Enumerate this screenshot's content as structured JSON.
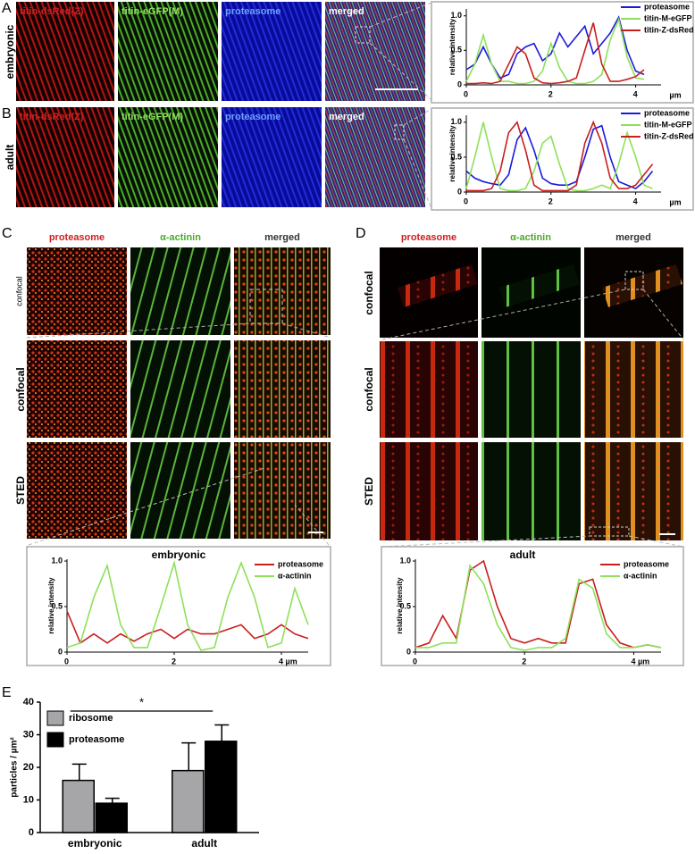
{
  "panels": {
    "A": {
      "letter": "A",
      "row_label": "embryonic",
      "columns": [
        "titin-dsRed(Z)",
        "titin-eGFP(M)",
        "proteasome",
        "merged"
      ]
    },
    "B": {
      "letter": "B",
      "row_label": "adult",
      "columns": [
        "titin-dsRed(Z)",
        "titin-eGFP(M)",
        "proteasome",
        "merged"
      ]
    },
    "C": {
      "letter": "C",
      "columns": [
        "proteasome",
        "α-actinin",
        "merged"
      ],
      "rows": [
        "confocal",
        "confocal",
        "STED"
      ]
    },
    "D": {
      "letter": "D",
      "columns": [
        "proteasome",
        "α-actinin",
        "merged"
      ],
      "rows": [
        "confocal",
        "confocal",
        "STED"
      ]
    },
    "E": {
      "letter": "E"
    }
  },
  "chart_data": [
    {
      "type": "line",
      "ylabel": "relative intensity",
      "xlabel": "µm",
      "legend": "upper right",
      "x": [
        0,
        0.2,
        0.4,
        0.6,
        0.8,
        1,
        1.2,
        1.4,
        1.6,
        1.8,
        2,
        2.2,
        2.4,
        2.6,
        2.8,
        3,
        3.2,
        3.4,
        3.6,
        3.8,
        4,
        4.2
      ],
      "series": [
        {
          "name": "proteasome",
          "color": "#1a1adc",
          "values": [
            0.22,
            0.3,
            0.55,
            0.3,
            0.1,
            0.15,
            0.45,
            0.55,
            0.6,
            0.35,
            0.45,
            0.75,
            0.55,
            0.7,
            0.85,
            0.45,
            0.6,
            0.75,
            0.98,
            0.5,
            0.2,
            0.15
          ]
        },
        {
          "name": "titin-M-eGFP",
          "color": "#8ee05a",
          "values": [
            0.05,
            0.3,
            0.72,
            0.3,
            0.05,
            0.05,
            0.02,
            0.02,
            0.05,
            0.2,
            0.6,
            0.25,
            0.05,
            0.02,
            0.02,
            0.05,
            0.15,
            0.65,
            0.95,
            0.4,
            0.1,
            0.08
          ]
        },
        {
          "name": "titin-Z-dsRed",
          "color": "#c81e1e",
          "values": [
            0.02,
            0.02,
            0.03,
            0.02,
            0.05,
            0.3,
            0.55,
            0.45,
            0.1,
            0.03,
            0.02,
            0.03,
            0.05,
            0.1,
            0.5,
            0.9,
            0.3,
            0.05,
            0.05,
            0.08,
            0.12,
            0.22
          ]
        }
      ],
      "xlim": [
        0,
        4.6
      ],
      "xticks": [
        0,
        2,
        4
      ],
      "ylim": [
        0,
        1.1
      ],
      "yticks": [
        0,
        0.5,
        {
          "value": 1,
          "label": "1.0"
        }
      ]
    },
    {
      "type": "line",
      "ylabel": "relative intensity",
      "xlabel": "µm",
      "legend": "upper right",
      "x": [
        0,
        0.2,
        0.4,
        0.6,
        0.8,
        1,
        1.2,
        1.4,
        1.6,
        1.8,
        2,
        2.2,
        2.4,
        2.6,
        2.8,
        3,
        3.2,
        3.4,
        3.6,
        3.8,
        4,
        4.2,
        4.4
      ],
      "series": [
        {
          "name": "proteasome",
          "color": "#1a1adc",
          "values": [
            0.3,
            0.2,
            0.15,
            0.12,
            0.1,
            0.25,
            0.75,
            0.92,
            0.6,
            0.2,
            0.12,
            0.1,
            0.1,
            0.15,
            0.5,
            0.9,
            0.95,
            0.5,
            0.15,
            0.1,
            0.05,
            0.15,
            0.3
          ]
        },
        {
          "name": "titin-M-eGFP",
          "color": "#8ee05a",
          "values": [
            0.05,
            0.5,
            1.0,
            0.5,
            0.05,
            0.02,
            0.02,
            0.05,
            0.3,
            0.7,
            0.8,
            0.4,
            0.05,
            0.02,
            0.02,
            0.05,
            0.1,
            0.05,
            0.4,
            0.85,
            0.5,
            0.1,
            0.05
          ]
        },
        {
          "name": "titin-Z-dsRed",
          "color": "#c81e1e",
          "values": [
            0.02,
            0.02,
            0.02,
            0.05,
            0.3,
            0.85,
            1.0,
            0.6,
            0.1,
            0.02,
            0.02,
            0.02,
            0.02,
            0.1,
            0.7,
            1.0,
            0.7,
            0.2,
            0.05,
            0.05,
            0.1,
            0.25,
            0.4
          ]
        }
      ],
      "xlim": [
        0,
        4.6
      ],
      "xticks": [
        0,
        2,
        4
      ],
      "ylim": [
        0,
        1.1
      ],
      "yticks": [
        0,
        0.5,
        {
          "value": 1,
          "label": "1.0"
        }
      ]
    },
    {
      "type": "line",
      "title": "embryonic",
      "ylabel": "relative intensity",
      "legend": "upper right",
      "x": [
        0,
        0.25,
        0.5,
        0.75,
        1,
        1.25,
        1.5,
        1.75,
        2,
        2.25,
        2.5,
        2.75,
        3,
        3.25,
        3.5,
        3.75,
        4,
        4.25,
        4.5
      ],
      "series": [
        {
          "name": "proteasome",
          "color": "#c81e1e",
          "values": [
            0.45,
            0.1,
            0.2,
            0.1,
            0.2,
            0.12,
            0.2,
            0.25,
            0.15,
            0.25,
            0.2,
            0.2,
            0.25,
            0.3,
            0.15,
            0.2,
            0.3,
            0.2,
            0.15
          ]
        },
        {
          "name": "α-actinin",
          "color": "#8ee05a",
          "values": [
            0.05,
            0.1,
            0.6,
            0.95,
            0.3,
            0.05,
            0.05,
            0.5,
            0.98,
            0.3,
            0.02,
            0.05,
            0.6,
            0.98,
            0.6,
            0.05,
            0.1,
            0.7,
            0.3
          ]
        }
      ],
      "xlim": [
        0,
        4.5
      ],
      "xticks": [
        0,
        2,
        {
          "value": 4,
          "label": "4 µm"
        }
      ],
      "ylim": [
        0,
        1.02
      ],
      "yticks": [
        0,
        0.5,
        {
          "value": 1,
          "label": "1.0"
        }
      ]
    },
    {
      "type": "line",
      "title": "adult",
      "ylabel": "relative intensity",
      "legend": "upper right",
      "x": [
        0,
        0.25,
        0.5,
        0.75,
        1,
        1.25,
        1.5,
        1.75,
        2,
        2.25,
        2.5,
        2.75,
        3,
        3.25,
        3.5,
        3.75,
        4,
        4.25,
        4.5
      ],
      "series": [
        {
          "name": "proteasome",
          "color": "#c81e1e",
          "values": [
            0.05,
            0.1,
            0.4,
            0.15,
            0.9,
            1.0,
            0.5,
            0.15,
            0.1,
            0.15,
            0.1,
            0.1,
            0.75,
            0.8,
            0.3,
            0.1,
            0.05,
            0.08,
            0.05
          ]
        },
        {
          "name": "α-actinin",
          "color": "#8ee05a",
          "values": [
            0.05,
            0.05,
            0.1,
            0.1,
            0.95,
            0.75,
            0.3,
            0.05,
            0.02,
            0.05,
            0.05,
            0.15,
            0.8,
            0.7,
            0.2,
            0.05,
            0.05,
            0.08,
            0.05
          ]
        }
      ],
      "xlim": [
        0,
        4.5
      ],
      "xticks": [
        0,
        2,
        {
          "value": 4,
          "label": "4 µm"
        }
      ],
      "ylim": [
        0,
        1.02
      ],
      "yticks": [
        0,
        0.5,
        {
          "value": 1,
          "label": "1.0"
        }
      ]
    },
    {
      "type": "bar",
      "ylabel": "particles / µm²",
      "legend": "upper left",
      "significance": "*",
      "categories": [
        "embryonic",
        "adult"
      ],
      "series": [
        {
          "name": "ribosome",
          "color": "#a6a6a8",
          "values": [
            16,
            19
          ],
          "errors": [
            5,
            8.5
          ]
        },
        {
          "name": "proteasome",
          "color": "#000000",
          "values": [
            9,
            28
          ],
          "errors": [
            1.5,
            5
          ]
        }
      ],
      "ylim": [
        0,
        40
      ],
      "yticks": [
        0,
        10,
        20,
        30,
        40
      ]
    }
  ]
}
